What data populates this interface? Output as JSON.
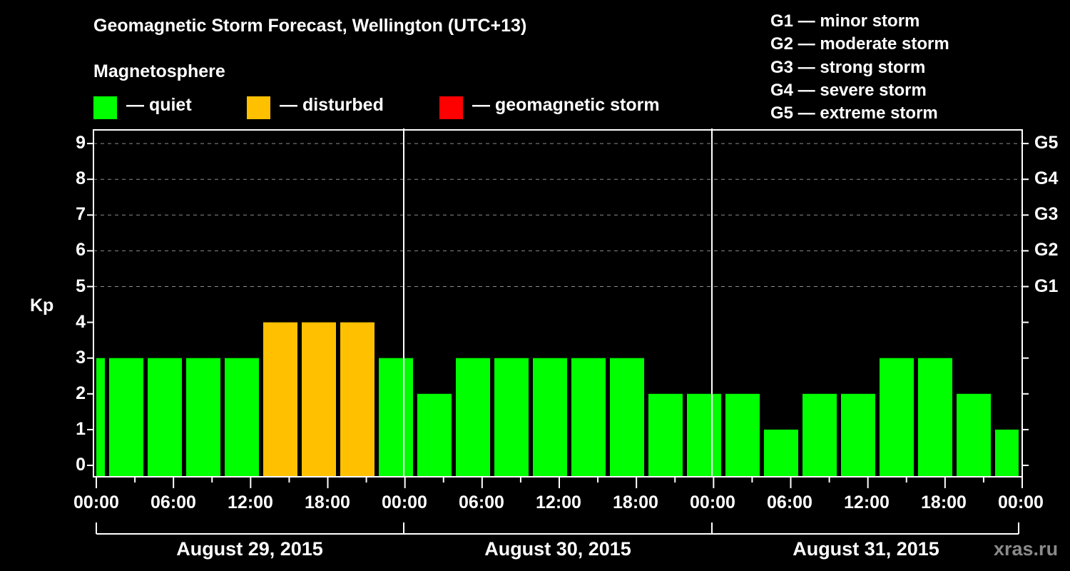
{
  "header": {
    "title": "Geomagnetic Storm Forecast, Wellington (UTC+13)",
    "subtitle": "Magnetosphere"
  },
  "legend": [
    {
      "label": "— quiet",
      "color": "#00ff00"
    },
    {
      "label": "— disturbed",
      "color": "#ffc000"
    },
    {
      "label": "— geomagnetic storm",
      "color": "#ff0000"
    }
  ],
  "g_legend": [
    "G1 — minor storm",
    "G2 — moderate storm",
    "G3 — strong storm",
    "G4 — severe storm",
    "G5 — extreme storm"
  ],
  "watermark": "xras.ru",
  "chart_data": {
    "type": "bar",
    "title": "Geomagnetic Storm Forecast, Wellington (UTC+13)",
    "ylabel": "Kp",
    "ylim": [
      0,
      9
    ],
    "yticks": [
      0,
      1,
      2,
      3,
      4,
      5,
      6,
      7,
      8,
      9
    ],
    "right_axis_ticks": [
      {
        "kp": 5,
        "label": "G1"
      },
      {
        "kp": 6,
        "label": "G2"
      },
      {
        "kp": 7,
        "label": "G3"
      },
      {
        "kp": 8,
        "label": "G4"
      },
      {
        "kp": 9,
        "label": "G5"
      }
    ],
    "grid": "horizontal dashed at Kp 5-9",
    "xtick_labels": [
      "00:00",
      "06:00",
      "12:00",
      "18:00",
      "00:00",
      "06:00",
      "12:00",
      "18:00",
      "00:00",
      "06:00",
      "12:00",
      "18:00",
      "00:00"
    ],
    "dates": [
      "August 29, 2015",
      "August 30, 2015",
      "August 31, 2015"
    ],
    "bin_hours": 3,
    "categories": [
      "Aug29 ~00:00 (partial)",
      "Aug29 ~01:00",
      "Aug29 ~04:00",
      "Aug29 ~07:00",
      "Aug29 ~10:00",
      "Aug29 ~13:00",
      "Aug29 ~16:00",
      "Aug29 ~19:00",
      "Aug29 ~22:00",
      "Aug30 ~01:00",
      "Aug30 ~04:00",
      "Aug30 ~07:00",
      "Aug30 ~10:00",
      "Aug30 ~13:00",
      "Aug30 ~16:00",
      "Aug30 ~19:00",
      "Aug30 ~22:00",
      "Aug31 ~01:00",
      "Aug31 ~04:00",
      "Aug31 ~07:00",
      "Aug31 ~10:00",
      "Aug31 ~13:00",
      "Aug31 ~16:00",
      "Aug31 ~19:00",
      "Aug31 ~22:00 (partial)"
    ],
    "values": [
      3,
      3,
      3,
      3,
      3,
      4,
      4,
      4,
      3,
      2,
      3,
      3,
      3,
      3,
      3,
      2,
      2,
      2,
      1,
      2,
      2,
      3,
      3,
      2,
      1
    ],
    "status": [
      "quiet",
      "quiet",
      "quiet",
      "quiet",
      "quiet",
      "disturbed",
      "disturbed",
      "disturbed",
      "quiet",
      "quiet",
      "quiet",
      "quiet",
      "quiet",
      "quiet",
      "quiet",
      "quiet",
      "quiet",
      "quiet",
      "quiet",
      "quiet",
      "quiet",
      "quiet",
      "quiet",
      "quiet",
      "quiet"
    ],
    "colors": {
      "quiet": "#00ff00",
      "disturbed": "#ffc000",
      "storm": "#ff0000"
    },
    "legend_position": "top"
  }
}
